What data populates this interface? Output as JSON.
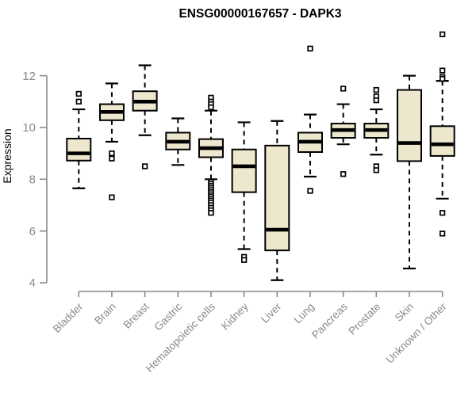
{
  "chart_data": {
    "type": "boxplot",
    "title": "ENSG00000167657 - DAPK3",
    "ylabel": "Expression",
    "xlabel": "",
    "ylim": [
      4,
      12
    ],
    "yticks": [
      4,
      6,
      8,
      10,
      12
    ],
    "grid": false,
    "legend": false,
    "categories": [
      "Bladder",
      "Brain",
      "Breast",
      "Gastric",
      "Hematopoietic cells",
      "Kidney",
      "Liver",
      "Lung",
      "Pancreas",
      "Prostate",
      "Skin",
      "Unknown / Other"
    ],
    "boxes": [
      {
        "category": "Bladder",
        "whisker_low": 7.65,
        "q1": 8.72,
        "median": 9.0,
        "q3": 9.57,
        "whisker_high": 10.7,
        "outliers": [
          11.3,
          11.0
        ]
      },
      {
        "category": "Brain",
        "whisker_low": 9.45,
        "q1": 10.28,
        "median": 10.6,
        "q3": 10.9,
        "whisker_high": 11.7,
        "outliers": [
          9.0,
          8.8,
          7.3
        ]
      },
      {
        "category": "Breast",
        "whisker_low": 9.7,
        "q1": 10.65,
        "median": 11.0,
        "q3": 11.4,
        "whisker_high": 12.4,
        "outliers": [
          8.5
        ]
      },
      {
        "category": "Gastric",
        "whisker_low": 8.55,
        "q1": 9.15,
        "median": 9.45,
        "q3": 9.8,
        "whisker_high": 10.35,
        "outliers": []
      },
      {
        "category": "Hematopoietic cells",
        "whisker_low": 8.0,
        "q1": 8.85,
        "median": 9.2,
        "q3": 9.55,
        "whisker_high": 10.65,
        "outliers": [
          11.15,
          11.0,
          10.9,
          10.78,
          7.9,
          7.82,
          7.74,
          7.66,
          7.58,
          7.5,
          7.42,
          7.34,
          7.26,
          7.18,
          7.1,
          7.0,
          6.9,
          6.8,
          6.7
        ]
      },
      {
        "category": "Kidney",
        "whisker_low": 5.3,
        "q1": 7.5,
        "median": 8.5,
        "q3": 9.15,
        "whisker_high": 10.2,
        "outliers": [
          5.0,
          4.88
        ]
      },
      {
        "category": "Liver",
        "whisker_low": 4.1,
        "q1": 5.25,
        "median": 6.05,
        "q3": 9.3,
        "whisker_high": 10.25,
        "outliers": []
      },
      {
        "category": "Lung",
        "whisker_low": 8.1,
        "q1": 9.05,
        "median": 9.45,
        "q3": 9.8,
        "whisker_high": 10.5,
        "outliers": [
          13.05,
          7.55
        ]
      },
      {
        "category": "Pancreas",
        "whisker_low": 9.35,
        "q1": 9.6,
        "median": 9.9,
        "q3": 10.15,
        "whisker_high": 10.9,
        "outliers": [
          11.5,
          8.2
        ]
      },
      {
        "category": "Prostate",
        "whisker_low": 8.95,
        "q1": 9.6,
        "median": 9.9,
        "q3": 10.15,
        "whisker_high": 10.7,
        "outliers": [
          11.45,
          11.2,
          11.05,
          8.5,
          8.35
        ]
      },
      {
        "category": "Skin",
        "whisker_low": 4.55,
        "q1": 8.7,
        "median": 9.4,
        "q3": 11.45,
        "whisker_high": 12.0,
        "outliers": []
      },
      {
        "category": "Unknown / Other",
        "whisker_low": 7.25,
        "q1": 8.9,
        "median": 9.35,
        "q3": 10.05,
        "whisker_high": 11.8,
        "outliers": [
          13.6,
          12.2,
          11.95,
          11.88,
          6.7,
          5.9
        ]
      }
    ]
  },
  "colors": {
    "box_fill": "#EDE7CE",
    "box_border": "#000000",
    "median": "#000000",
    "whisker": "#000000",
    "outlier_stroke": "#000000",
    "outlier_fill": "#FFFFFF",
    "axis": "#8A8A8A",
    "tick_text": "#8A8A8A",
    "title_text": "#000000"
  }
}
